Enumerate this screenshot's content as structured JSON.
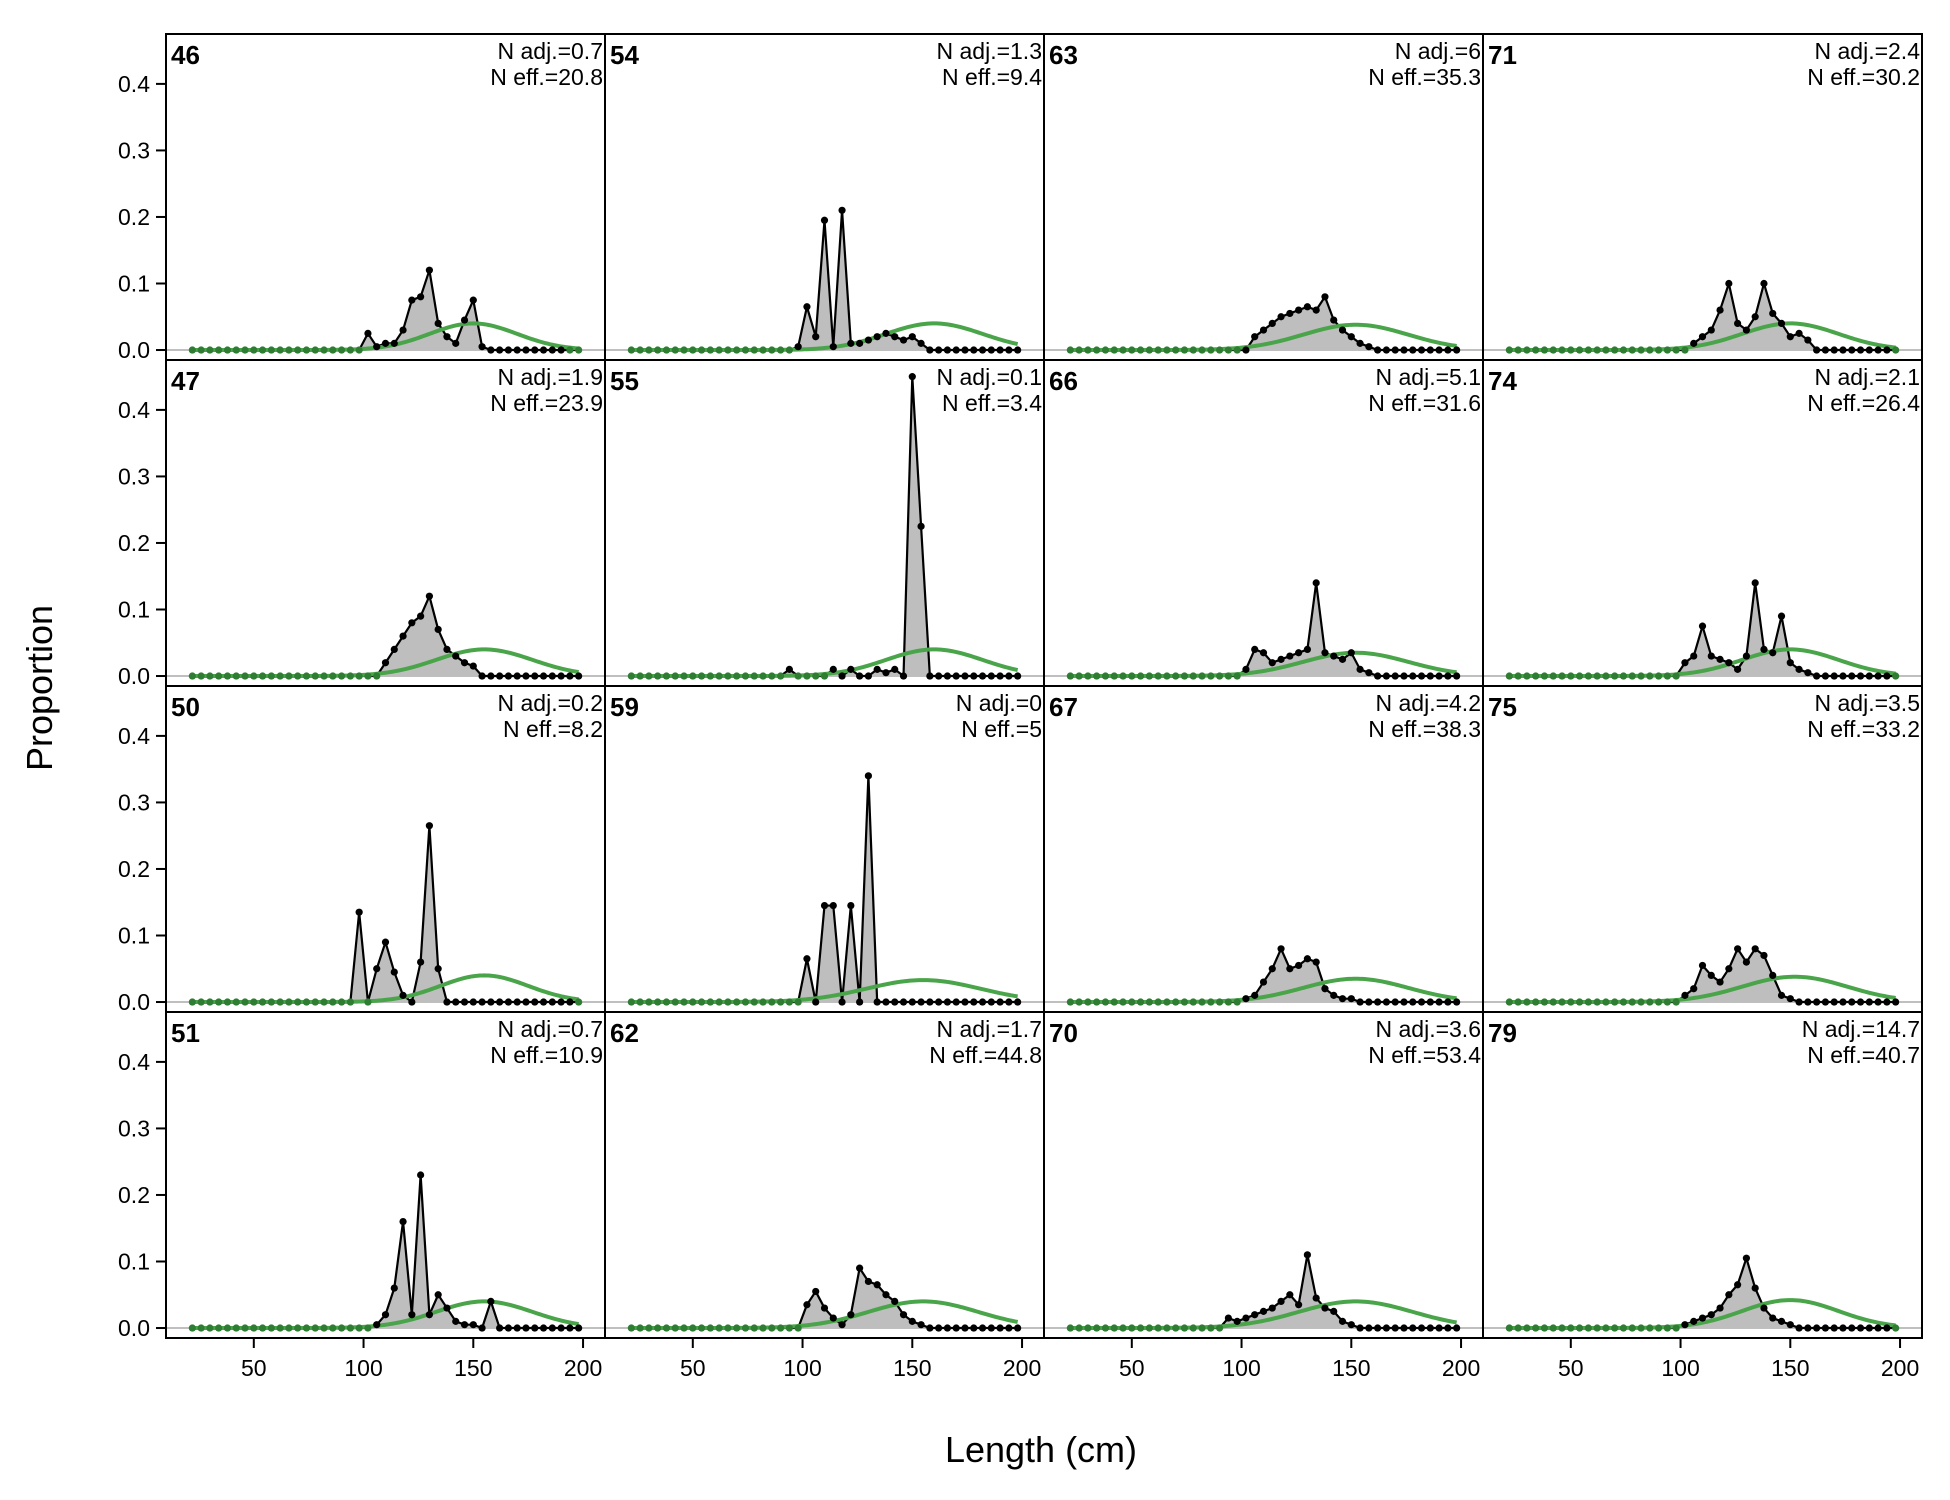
{
  "chart_data": {
    "type": "line",
    "xlabel": "Length (cm)",
    "ylabel": "Proportion",
    "xlim": [
      10,
      210
    ],
    "ylim": [
      -0.015,
      0.475
    ],
    "x_ticks": [
      50,
      100,
      150,
      200
    ],
    "y_ticks": [
      0.0,
      0.1,
      0.2,
      0.3,
      0.4
    ],
    "grid": false,
    "layout": "4 rows x 4 columns, panels share axes",
    "colors": {
      "observed_fill": "#bebebe",
      "observed_line": "#000000",
      "expected_line": "#4aa54a",
      "zero_line": "#bfbfbf"
    },
    "x_bins": [
      22,
      26,
      30,
      34,
      38,
      42,
      46,
      50,
      54,
      58,
      62,
      66,
      70,
      74,
      78,
      82,
      86,
      90,
      94,
      98,
      102,
      106,
      110,
      114,
      118,
      122,
      126,
      130,
      134,
      138,
      142,
      146,
      150,
      154,
      158,
      162,
      166,
      170,
      174,
      178,
      182,
      186,
      190,
      194,
      198
    ],
    "panels": [
      {
        "id": "46",
        "n_adj": "N adj.=0.7",
        "n_eff": "N eff.=20.8",
        "expected_mean": 150,
        "expected_sd": 20,
        "expected_peak": 0.04,
        "observed": [
          0,
          0,
          0,
          0,
          0,
          0,
          0,
          0,
          0,
          0,
          0,
          0,
          0,
          0,
          0,
          0,
          0,
          0,
          0,
          0,
          0.025,
          0.005,
          0.01,
          0.01,
          0.03,
          0.075,
          0.08,
          0.12,
          0.04,
          0.02,
          0.01,
          0.045,
          0.075,
          0.005,
          0,
          0,
          0,
          0,
          0,
          0,
          0,
          0,
          0,
          0,
          0
        ]
      },
      {
        "id": "54",
        "n_adj": "N adj.=1.3",
        "n_eff": "N eff.=9.4",
        "expected_mean": 160,
        "expected_sd": 22,
        "expected_peak": 0.04,
        "observed": [
          0,
          0,
          0,
          0,
          0,
          0,
          0,
          0,
          0,
          0,
          0,
          0,
          0,
          0,
          0,
          0,
          0,
          0,
          0,
          0.005,
          0.065,
          0.02,
          0.195,
          0.005,
          0.21,
          0.01,
          0.01,
          0.015,
          0.02,
          0.025,
          0.02,
          0.015,
          0.02,
          0.01,
          0,
          0,
          0,
          0,
          0,
          0,
          0,
          0,
          0,
          0,
          0
        ]
      },
      {
        "id": "63",
        "n_adj": "N adj.=6",
        "n_eff": "N eff.=35.3",
        "expected_mean": 152,
        "expected_sd": 24,
        "expected_peak": 0.038,
        "observed": [
          0,
          0,
          0,
          0,
          0,
          0,
          0,
          0,
          0,
          0,
          0,
          0,
          0,
          0,
          0,
          0,
          0,
          0,
          0,
          0,
          0,
          0.02,
          0.03,
          0.04,
          0.05,
          0.055,
          0.06,
          0.065,
          0.06,
          0.08,
          0.045,
          0.03,
          0.02,
          0.01,
          0.005,
          0,
          0,
          0,
          0,
          0,
          0,
          0,
          0,
          0,
          0
        ]
      },
      {
        "id": "71",
        "n_adj": "N adj.=2.4",
        "n_eff": "N eff.=30.2",
        "expected_mean": 150,
        "expected_sd": 22,
        "expected_peak": 0.04,
        "observed": [
          0,
          0,
          0,
          0,
          0,
          0,
          0,
          0,
          0,
          0,
          0,
          0,
          0,
          0,
          0,
          0,
          0,
          0,
          0,
          0,
          0,
          0.01,
          0.02,
          0.03,
          0.06,
          0.1,
          0.04,
          0.03,
          0.05,
          0.1,
          0.055,
          0.04,
          0.02,
          0.025,
          0.015,
          0,
          0,
          0,
          0,
          0,
          0,
          0,
          0,
          0,
          0
        ]
      },
      {
        "id": "47",
        "n_adj": "N adj.=1.9",
        "n_eff": "N eff.=23.9",
        "expected_mean": 155,
        "expected_sd": 22,
        "expected_peak": 0.04,
        "observed": [
          0,
          0,
          0,
          0,
          0,
          0,
          0,
          0,
          0,
          0,
          0,
          0,
          0,
          0,
          0,
          0,
          0,
          0,
          0,
          0,
          0,
          0,
          0.02,
          0.04,
          0.06,
          0.08,
          0.09,
          0.12,
          0.07,
          0.04,
          0.03,
          0.02,
          0.015,
          0,
          0,
          0,
          0,
          0,
          0,
          0,
          0,
          0,
          0,
          0,
          0
        ]
      },
      {
        "id": "55",
        "n_adj": "N adj.=0.1",
        "n_eff": "N eff.=3.4",
        "expected_mean": 160,
        "expected_sd": 22,
        "expected_peak": 0.04,
        "observed": [
          0,
          0,
          0,
          0,
          0,
          0,
          0,
          0,
          0,
          0,
          0,
          0,
          0,
          0,
          0,
          0,
          0,
          0,
          0.01,
          0,
          0,
          0,
          0,
          0.01,
          0,
          0.01,
          0,
          0,
          0.01,
          0.005,
          0.01,
          0,
          0.45,
          0.225,
          0,
          0,
          0,
          0,
          0,
          0,
          0,
          0,
          0,
          0,
          0
        ]
      },
      {
        "id": "66",
        "n_adj": "N adj.=5.1",
        "n_eff": "N eff.=31.6",
        "expected_mean": 152,
        "expected_sd": 24,
        "expected_peak": 0.035,
        "observed": [
          0,
          0,
          0,
          0,
          0,
          0,
          0,
          0,
          0,
          0,
          0,
          0,
          0,
          0,
          0,
          0,
          0,
          0,
          0,
          0,
          0.01,
          0.04,
          0.035,
          0.02,
          0.025,
          0.03,
          0.035,
          0.04,
          0.14,
          0.035,
          0.03,
          0.025,
          0.035,
          0.01,
          0.005,
          0,
          0,
          0,
          0,
          0,
          0,
          0,
          0,
          0,
          0
        ]
      },
      {
        "id": "74",
        "n_adj": "N adj.=2.1",
        "n_eff": "N eff.=26.4",
        "expected_mean": 150,
        "expected_sd": 22,
        "expected_peak": 0.04,
        "observed": [
          0,
          0,
          0,
          0,
          0,
          0,
          0,
          0,
          0,
          0,
          0,
          0,
          0,
          0,
          0,
          0,
          0,
          0,
          0,
          0,
          0.02,
          0.03,
          0.075,
          0.03,
          0.025,
          0.02,
          0.01,
          0.03,
          0.14,
          0.04,
          0.035,
          0.09,
          0.02,
          0.01,
          0.005,
          0,
          0,
          0,
          0,
          0,
          0,
          0,
          0,
          0,
          0
        ]
      },
      {
        "id": "50",
        "n_adj": "N adj.=0.2",
        "n_eff": "N eff.=8.2",
        "expected_mean": 155,
        "expected_sd": 20,
        "expected_peak": 0.04,
        "observed": [
          0,
          0,
          0,
          0,
          0,
          0,
          0,
          0,
          0,
          0,
          0,
          0,
          0,
          0,
          0,
          0,
          0,
          0,
          0,
          0.135,
          0,
          0.05,
          0.09,
          0.045,
          0.01,
          0,
          0.06,
          0.265,
          0.05,
          0,
          0,
          0,
          0,
          0,
          0,
          0,
          0,
          0,
          0,
          0,
          0,
          0,
          0,
          0,
          0
        ]
      },
      {
        "id": "59",
        "n_adj": "N adj.=0",
        "n_eff": "N eff.=5",
        "expected_mean": 155,
        "expected_sd": 26,
        "expected_peak": 0.033,
        "observed": [
          0,
          0,
          0,
          0,
          0,
          0,
          0,
          0,
          0,
          0,
          0,
          0,
          0,
          0,
          0,
          0,
          0,
          0,
          0,
          0,
          0.065,
          0,
          0.145,
          0.145,
          0,
          0.145,
          0,
          0.34,
          0,
          0,
          0,
          0,
          0,
          0,
          0,
          0,
          0,
          0,
          0,
          0,
          0,
          0,
          0,
          0,
          0
        ]
      },
      {
        "id": "67",
        "n_adj": "N adj.=4.2",
        "n_eff": "N eff.=38.3",
        "expected_mean": 152,
        "expected_sd": 24,
        "expected_peak": 0.035,
        "observed": [
          0,
          0,
          0,
          0,
          0,
          0,
          0,
          0,
          0,
          0,
          0,
          0,
          0,
          0,
          0,
          0,
          0,
          0,
          0,
          0,
          0.005,
          0.01,
          0.03,
          0.05,
          0.08,
          0.05,
          0.055,
          0.065,
          0.06,
          0.02,
          0.01,
          0.005,
          0.005,
          0,
          0,
          0,
          0,
          0,
          0,
          0,
          0,
          0,
          0,
          0,
          0
        ]
      },
      {
        "id": "75",
        "n_adj": "N adj.=3.5",
        "n_eff": "N eff.=33.2",
        "expected_mean": 152,
        "expected_sd": 24,
        "expected_peak": 0.038,
        "observed": [
          0,
          0,
          0,
          0,
          0,
          0,
          0,
          0,
          0,
          0,
          0,
          0,
          0,
          0,
          0,
          0,
          0,
          0,
          0,
          0,
          0.01,
          0.02,
          0.055,
          0.04,
          0.03,
          0.05,
          0.08,
          0.06,
          0.08,
          0.07,
          0.04,
          0.01,
          0.005,
          0,
          0,
          0,
          0,
          0,
          0,
          0,
          0,
          0,
          0,
          0,
          0
        ]
      },
      {
        "id": "51",
        "n_adj": "N adj.=0.7",
        "n_eff": "N eff.=10.9",
        "expected_mean": 155,
        "expected_sd": 22,
        "expected_peak": 0.04,
        "observed": [
          0,
          0,
          0,
          0,
          0,
          0,
          0,
          0,
          0,
          0,
          0,
          0,
          0,
          0,
          0,
          0,
          0,
          0,
          0,
          0,
          0,
          0.005,
          0.02,
          0.06,
          0.16,
          0.02,
          0.23,
          0.02,
          0.05,
          0.03,
          0.01,
          0.005,
          0.005,
          0,
          0.04,
          0,
          0,
          0,
          0,
          0,
          0,
          0,
          0,
          0,
          0
        ]
      },
      {
        "id": "62",
        "n_adj": "N adj.=1.7",
        "n_eff": "N eff.=44.8",
        "expected_mean": 155,
        "expected_sd": 25,
        "expected_peak": 0.04,
        "observed": [
          0,
          0,
          0,
          0,
          0,
          0,
          0,
          0,
          0,
          0,
          0,
          0,
          0,
          0,
          0,
          0,
          0,
          0,
          0,
          0,
          0.035,
          0.055,
          0.03,
          0.015,
          0.005,
          0.02,
          0.09,
          0.07,
          0.065,
          0.05,
          0.04,
          0.02,
          0.01,
          0.005,
          0,
          0,
          0,
          0,
          0,
          0,
          0,
          0,
          0,
          0,
          0
        ]
      },
      {
        "id": "70",
        "n_adj": "N adj.=3.6",
        "n_eff": "N eff.=53.4",
        "expected_mean": 152,
        "expected_sd": 26,
        "expected_peak": 0.04,
        "observed": [
          0,
          0,
          0,
          0,
          0,
          0,
          0,
          0,
          0,
          0,
          0,
          0,
          0,
          0,
          0,
          0,
          0,
          0,
          0.015,
          0.01,
          0.015,
          0.02,
          0.025,
          0.03,
          0.04,
          0.05,
          0.035,
          0.11,
          0.045,
          0.03,
          0.025,
          0.01,
          0.005,
          0,
          0,
          0,
          0,
          0,
          0,
          0,
          0,
          0,
          0,
          0,
          0
        ]
      },
      {
        "id": "79",
        "n_adj": "N adj.=14.7",
        "n_eff": "N eff.=40.7",
        "expected_mean": 150,
        "expected_sd": 22,
        "expected_peak": 0.042,
        "observed": [
          0,
          0,
          0,
          0,
          0,
          0,
          0,
          0,
          0,
          0,
          0,
          0,
          0,
          0,
          0,
          0,
          0,
          0,
          0,
          0,
          0.005,
          0.01,
          0.015,
          0.02,
          0.03,
          0.05,
          0.065,
          0.105,
          0.06,
          0.03,
          0.015,
          0.01,
          0.005,
          0,
          0,
          0,
          0,
          0,
          0,
          0,
          0,
          0,
          0,
          0,
          0
        ]
      }
    ]
  }
}
